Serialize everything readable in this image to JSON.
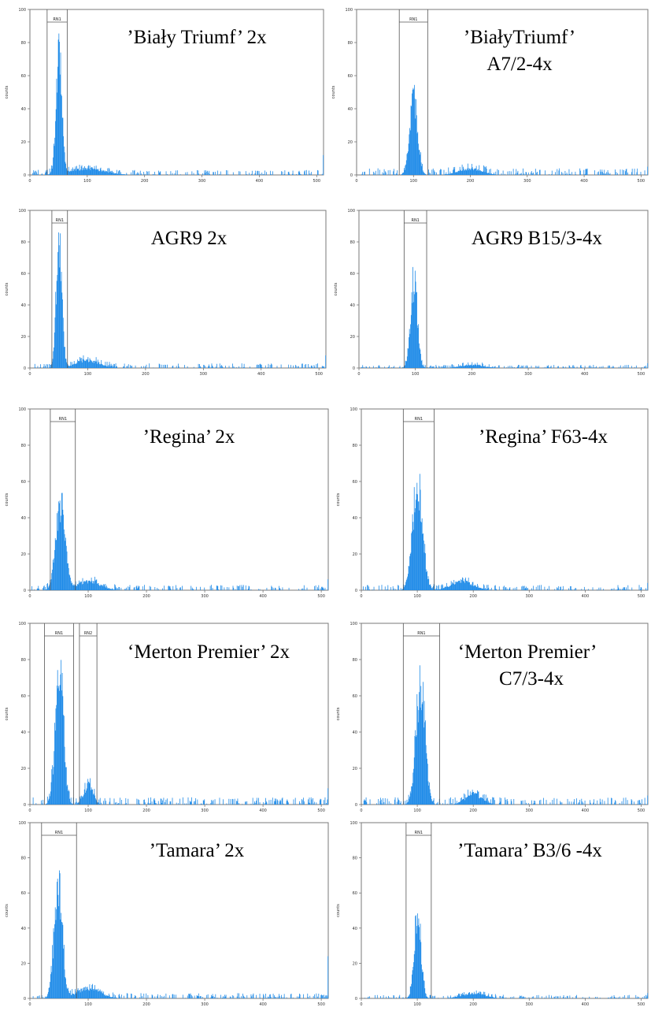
{
  "chart_data": [
    {
      "type": "bar",
      "title": "’Biały Triumf’ 2x",
      "ylabel": "counts",
      "xlim": [
        0,
        512
      ],
      "ylim": [
        0,
        100
      ],
      "yticks": [
        "0",
        "20",
        "40",
        "60",
        "80",
        "100"
      ],
      "xticks": [
        "0",
        "100",
        "200",
        "300",
        "400",
        "500"
      ],
      "gates": [
        {
          "label": "RN1",
          "x0": 30,
          "x1": 65
        }
      ],
      "peaks": [
        {
          "center": 50,
          "height": 81,
          "width": 5
        },
        {
          "center": 100,
          "height": 4,
          "width": 30
        }
      ],
      "baseline": 1.5,
      "end_spike": 12
    },
    {
      "type": "bar",
      "title": "’BiałyTriumf’",
      "subtitle": "A7/2-4x",
      "ylabel": "counts",
      "xlim": [
        0,
        512
      ],
      "ylim": [
        0,
        100
      ],
      "yticks": [
        "0",
        "20",
        "40",
        "60",
        "80",
        "100"
      ],
      "xticks": [
        "0",
        "100",
        "200",
        "300",
        "400",
        "500"
      ],
      "gates": [
        {
          "label": "RN1",
          "x0": 75,
          "x1": 125
        }
      ],
      "peaks": [
        {
          "center": 100,
          "height": 49,
          "width": 7
        },
        {
          "center": 200,
          "height": 4,
          "width": 20
        }
      ],
      "baseline": 2,
      "end_spike": 5
    },
    {
      "type": "bar",
      "title": "AGR9 2x",
      "ylabel": "counts",
      "xlim": [
        0,
        512
      ],
      "ylim": [
        0,
        100
      ],
      "yticks": [
        "0",
        "20",
        "40",
        "60",
        "80",
        "100"
      ],
      "xticks": [
        "0",
        "100",
        "200",
        "300",
        "400",
        "500"
      ],
      "gates": [
        {
          "label": "RN1",
          "x0": 38,
          "x1": 65
        }
      ],
      "peaks": [
        {
          "center": 50,
          "height": 87,
          "width": 5
        },
        {
          "center": 100,
          "height": 5,
          "width": 20
        }
      ],
      "baseline": 1.5,
      "end_spike": 8
    },
    {
      "type": "bar",
      "title": "AGR9 B15/3-4x",
      "ylabel": "counts",
      "xlim": [
        0,
        512
      ],
      "ylim": [
        0,
        100
      ],
      "yticks": [
        "0",
        "20",
        "40",
        "60",
        "80",
        "100"
      ],
      "xticks": [
        "0",
        "100",
        "200",
        "300",
        "400",
        "500"
      ],
      "gates": [
        {
          "label": "RN1",
          "x0": 80,
          "x1": 120
        }
      ],
      "peaks": [
        {
          "center": 97,
          "height": 60,
          "width": 6
        },
        {
          "center": 200,
          "height": 2,
          "width": 20
        }
      ],
      "baseline": 1,
      "end_spike": 3
    },
    {
      "type": "bar",
      "title": "’Regina’ 2x",
      "ylabel": "counts",
      "xlim": [
        0,
        512
      ],
      "ylim": [
        0,
        100
      ],
      "yticks": [
        "0",
        "20",
        "40",
        "60",
        "80",
        "100"
      ],
      "xticks": [
        "0",
        "100",
        "200",
        "300",
        "400",
        "500"
      ],
      "gates": [
        {
          "label": "RN1",
          "x0": 35,
          "x1": 78
        }
      ],
      "peaks": [
        {
          "center": 52,
          "height": 50,
          "width": 8
        },
        {
          "center": 100,
          "height": 5,
          "width": 20
        }
      ],
      "baseline": 1.5,
      "end_spike": 6
    },
    {
      "type": "bar",
      "title": "’Regina’ F63-4x",
      "ylabel": "counts",
      "xlim": [
        0,
        512
      ],
      "ylim": [
        0,
        100
      ],
      "yticks": [
        "0",
        "20",
        "40",
        "60",
        "80",
        "100"
      ],
      "xticks": [
        "0",
        "100",
        "200",
        "300",
        "400",
        "500"
      ],
      "gates": [
        {
          "label": "RN1",
          "x0": 75,
          "x1": 130
        }
      ],
      "peaks": [
        {
          "center": 100,
          "height": 63,
          "width": 9
        },
        {
          "center": 180,
          "height": 5,
          "width": 20
        }
      ],
      "baseline": 1.5,
      "end_spike": 4
    },
    {
      "type": "bar",
      "title": "‘Merton Premier’ 2x",
      "ylabel": "counts",
      "xlim": [
        0,
        512
      ],
      "ylim": [
        0,
        100
      ],
      "yticks": [
        "0",
        "20",
        "40",
        "60",
        "80",
        "100"
      ],
      "xticks": [
        "0",
        "100",
        "200",
        "300",
        "400",
        "500"
      ],
      "gates": [
        {
          "label": "RN1",
          "x0": 25,
          "x1": 75
        },
        {
          "label": "RN2",
          "x0": 85,
          "x1": 115
        }
      ],
      "peaks": [
        {
          "center": 50,
          "height": 81,
          "width": 7
        },
        {
          "center": 100,
          "height": 11,
          "width": 8
        }
      ],
      "baseline": 2,
      "end_spike": 9
    },
    {
      "type": "bar",
      "title": "‘Merton Premier’",
      "subtitle": "C7/3-4x",
      "ylabel": "counts",
      "xlim": [
        0,
        512
      ],
      "ylim": [
        0,
        100
      ],
      "yticks": [
        "0",
        "20",
        "40",
        "60",
        "80",
        "100"
      ],
      "xticks": [
        "0",
        "100",
        "200",
        "300",
        "400",
        "500"
      ],
      "gates": [
        {
          "label": "RN1",
          "x0": 75,
          "x1": 140
        }
      ],
      "peaks": [
        {
          "center": 105,
          "height": 73,
          "width": 8
        },
        {
          "center": 200,
          "height": 6,
          "width": 15
        }
      ],
      "baseline": 2,
      "end_spike": 5
    },
    {
      "type": "bar",
      "title": "’Tamara’ 2x",
      "ylabel": "counts",
      "xlim": [
        0,
        512
      ],
      "ylim": [
        0,
        100
      ],
      "yticks": [
        "0",
        "20",
        "40",
        "60",
        "80",
        "100"
      ],
      "xticks": [
        "0",
        "100",
        "200",
        "300",
        "400",
        "500"
      ],
      "gates": [
        {
          "label": "RN1",
          "x0": 20,
          "x1": 80
        }
      ],
      "peaks": [
        {
          "center": 48,
          "height": 70,
          "width": 7
        },
        {
          "center": 100,
          "height": 6,
          "width": 20
        }
      ],
      "baseline": 1.5,
      "end_spike": 24
    },
    {
      "type": "bar",
      "title": "’Tamara’ B3/6 -4x",
      "ylabel": "counts",
      "xlim": [
        0,
        512
      ],
      "ylim": [
        0,
        100
      ],
      "yticks": [
        "0",
        "20",
        "40",
        "60",
        "80",
        "100"
      ],
      "xticks": [
        "0",
        "100",
        "200",
        "300",
        "400",
        "500"
      ],
      "gates": [
        {
          "label": "RN1",
          "x0": 80,
          "x1": 125
        }
      ],
      "peaks": [
        {
          "center": 100,
          "height": 53,
          "width": 6
        },
        {
          "center": 200,
          "height": 3,
          "width": 20
        }
      ],
      "baseline": 1,
      "end_spike": 3
    }
  ]
}
